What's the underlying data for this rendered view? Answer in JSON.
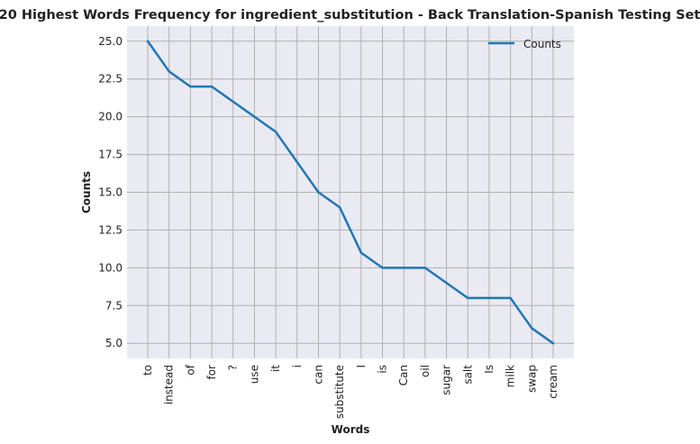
{
  "chart_data": {
    "type": "line",
    "title": "20 Highest Words Frequency for ingredient_substitution - Back Translation-Spanish Testing Set",
    "xlabel": "Words",
    "ylabel": "Counts",
    "categories": [
      "to",
      "instead",
      "of",
      "for",
      "?",
      "use",
      "it",
      "i",
      "can",
      "substitute",
      "I",
      "is",
      "Can",
      "oil",
      "sugar",
      "salt",
      "Is",
      "milk",
      "swap",
      "cream"
    ],
    "series": [
      {
        "name": "Counts",
        "values": [
          25,
          23,
          22,
          22,
          21,
          20,
          19,
          17,
          15,
          14,
          11,
          10,
          10,
          10,
          9,
          8,
          8,
          8,
          6,
          5
        ],
        "color": "#1f77b4"
      }
    ],
    "yticks": [
      "5.0",
      "7.5",
      "10.0",
      "12.5",
      "15.0",
      "17.5",
      "20.0",
      "22.5",
      "25.0"
    ],
    "ylim": [
      4,
      26
    ],
    "grid": true,
    "legend_position": "top-right",
    "background": "#eaeaf2",
    "grid_color": "#b0b0b0"
  }
}
